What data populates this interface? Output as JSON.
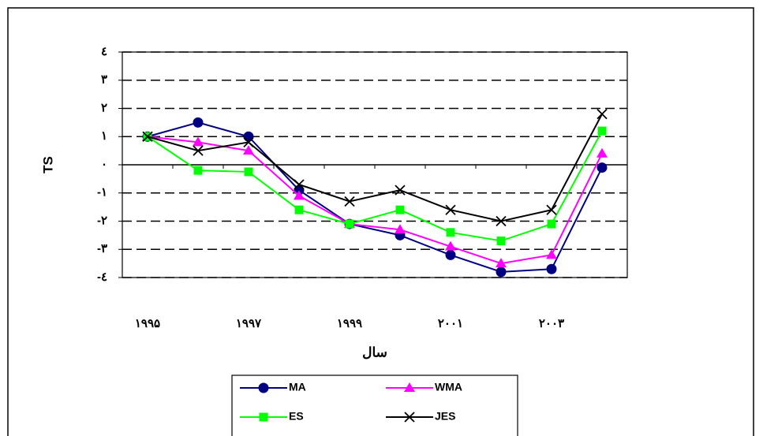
{
  "chart_data": {
    "type": "line",
    "y_label": "TS",
    "x_label": "سال",
    "categories": [
      "۱۹۹۵",
      null,
      "۱۹۹۷",
      null,
      "۱۹۹۹",
      null,
      "۲۰۰۱",
      null,
      "۲۰۰۳",
      null
    ],
    "series": [
      {
        "name": "MA",
        "color": "#000080",
        "marker": "circle",
        "values": [
          1.0,
          1.5,
          1.0,
          -0.9,
          -2.1,
          -2.5,
          -3.2,
          -3.8,
          -3.7,
          -0.1
        ]
      },
      {
        "name": "WMA",
        "color": "#ff00ff",
        "marker": "triangle",
        "values": [
          1.0,
          0.8,
          0.5,
          -1.1,
          -2.1,
          -2.3,
          -2.9,
          -3.5,
          -3.2,
          0.4
        ]
      },
      {
        "name": "ES",
        "color": "#00ff00",
        "marker": "square",
        "values": [
          1.0,
          -0.2,
          -0.25,
          -1.6,
          -2.1,
          -1.6,
          -2.4,
          -2.7,
          -2.1,
          1.2
        ]
      },
      {
        "name": "JES",
        "color": "#000000",
        "marker": "x",
        "values": [
          1.0,
          0.5,
          0.8,
          -0.7,
          -1.3,
          -0.9,
          -1.6,
          -2.0,
          -1.6,
          1.8
        ]
      }
    ],
    "ylim": [
      -4,
      4
    ],
    "yticks": [
      {
        "value": -4,
        "label": "-٤"
      },
      {
        "value": -3,
        "label": "-٣"
      },
      {
        "value": -2,
        "label": "-٢"
      },
      {
        "value": -1,
        "label": "-١"
      },
      {
        "value": 0,
        "label": "٠"
      },
      {
        "value": 1,
        "label": "١"
      },
      {
        "value": 2,
        "label": "٢"
      },
      {
        "value": 3,
        "label": "٣"
      },
      {
        "value": 4,
        "label": "٤"
      }
    ],
    "grid": true,
    "legend": "bottom"
  }
}
